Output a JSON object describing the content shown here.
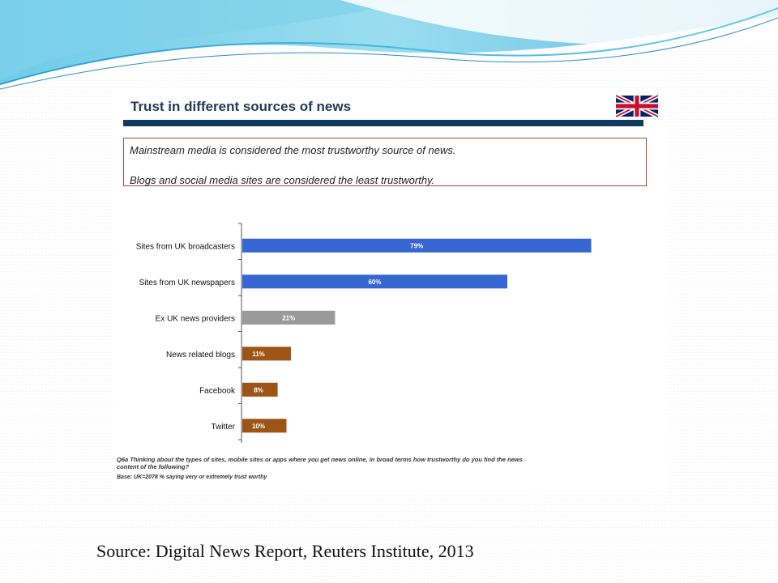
{
  "slide": {
    "source": "Source: Digital News Report, Reuters Institute, 2013"
  },
  "panel": {
    "title": "Trust in different sources of news",
    "flag_icon": "uk-flag-icon",
    "callout": {
      "line1": "Mainstream media is considered the most trustworthy source of news.",
      "line2": "Blogs and social media sites are considered the least trustworthy."
    },
    "footnote": "Q6a Thinking about the types of sites, mobile sites or apps where you get news online, in broad terms how trustworthy do you find the news content of the following?",
    "base": "Base: UK=2078  % saying very or extremely trust worthy"
  },
  "colors": {
    "blue": "#3566d1",
    "grey": "#9a9a9a",
    "orange": "#9c5516",
    "title_rule": "#0e3a5f",
    "callout_border": "#a54a3b"
  },
  "chart_data": {
    "type": "bar",
    "orientation": "horizontal",
    "categories": [
      "Sites  from UK broadcasters",
      "Sites from UK newspapers",
      "Ex UK news providers",
      "News related blogs",
      "Facebook",
      "Twitter"
    ],
    "values": [
      79,
      60,
      21,
      11,
      8,
      10
    ],
    "value_labels": [
      "79%",
      "60%",
      "21%",
      "11%",
      "8%",
      "10%"
    ],
    "bar_colors": [
      "#3566d1",
      "#3566d1",
      "#9a9a9a",
      "#9c5516",
      "#9c5516",
      "#9c5516"
    ],
    "xlim": [
      0,
      100
    ]
  }
}
